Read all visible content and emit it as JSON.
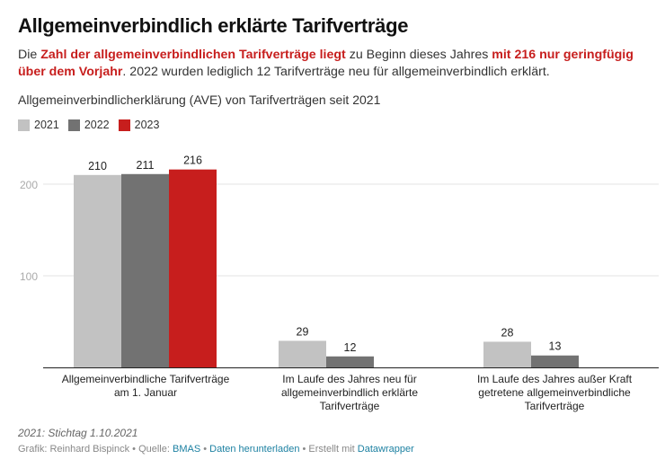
{
  "header": {
    "title": "Allgemeinverbindlich erklärte Tarifverträge",
    "desc_parts": [
      {
        "text": "Die ",
        "bold": false
      },
      {
        "text": "Zahl der allgemeinverbindlichen Tarifverträge liegt",
        "bold": true
      },
      {
        "text": " zu Beginn dieses Jahres ",
        "bold": false
      },
      {
        "text": "mit 216 nur geringfügig über dem Vorjahr",
        "bold": true
      },
      {
        "text": ". 2022 wurden lediglich 12 Tarifverträge neu für allgemeinverbindlich erklärt.",
        "bold": false
      }
    ],
    "subtitle": "Allgemeinverbindlicherklärung (AVE) von Tarifverträgen seit 2021"
  },
  "chart_data": {
    "type": "bar",
    "title": "Allgemeinverbindlicherklärung (AVE) von Tarifverträgen seit 2021",
    "categories": [
      [
        "Allgemeinverbindliche Tarifverträge",
        "am 1. Januar"
      ],
      [
        "Im Laufe des Jahres neu für",
        "allgemeinverbindlich erklärte",
        "Tarifverträge"
      ],
      [
        "Im Laufe des Jahres außer Kraft",
        "getretene allgemeinverbindliche",
        "Tarifverträge"
      ]
    ],
    "series": [
      {
        "name": "2021",
        "color": "#c2c2c2",
        "values": [
          210,
          29,
          28
        ]
      },
      {
        "name": "2022",
        "color": "#727272",
        "values": [
          211,
          12,
          13
        ]
      },
      {
        "name": "2023",
        "color": "#c71e1d",
        "values": [
          216,
          null,
          null
        ]
      }
    ],
    "yticks": [
      100,
      200
    ],
    "ylim": [
      0,
      216
    ],
    "grid": true,
    "legend": "top-left",
    "xlabel": "",
    "ylabel": ""
  },
  "footer": {
    "note": "2021: Stichtag 1.10.2021",
    "credit_prefix": "Grafik: Reinhard Bispinck • Quelle: ",
    "source_link": "BMAS",
    "sep1": " • ",
    "download_link": "Daten herunterladen",
    "sep2": " • Erstellt mit ",
    "tool_link": "Datawrapper"
  }
}
